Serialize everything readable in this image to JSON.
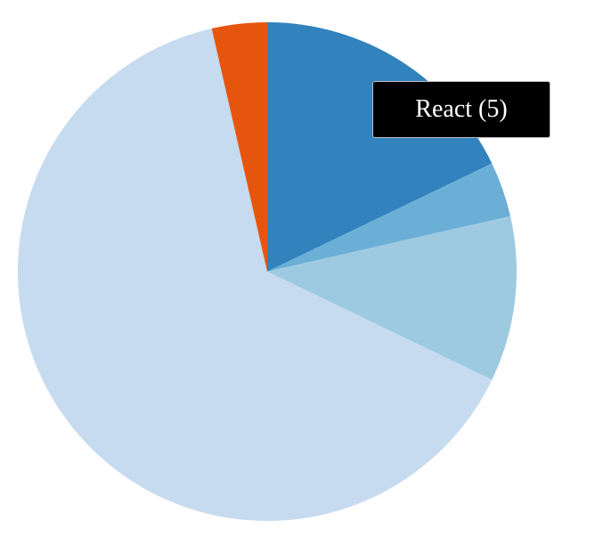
{
  "chart_data": {
    "type": "pie",
    "title": "",
    "slices": [
      {
        "value": 5,
        "color": "#3182bd"
      },
      {
        "value": 1,
        "color": "#6baed6"
      },
      {
        "value": 3,
        "color": "#9ecae1"
      },
      {
        "value": 18,
        "color": "#c6dbef"
      },
      {
        "value": 1,
        "color": "#e6550d"
      }
    ],
    "start_angle_deg": 0,
    "direction": "clockwise"
  },
  "tooltip": {
    "text": "React (5)",
    "visible": true
  }
}
